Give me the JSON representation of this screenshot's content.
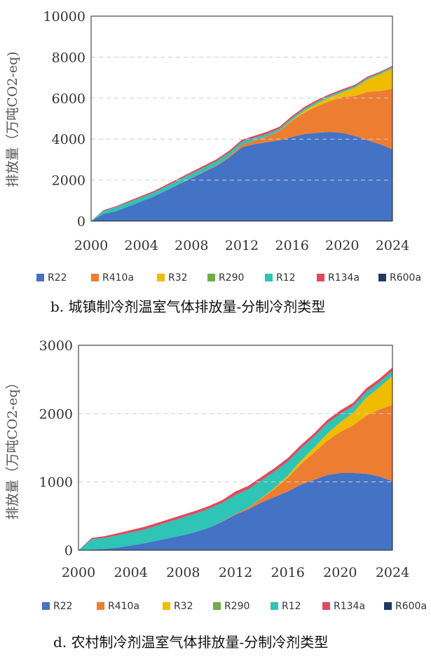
{
  "legend": [
    {
      "name": "R22",
      "color": "#4472C4"
    },
    {
      "name": "R410a",
      "color": "#ED7D31"
    },
    {
      "name": "R32",
      "color": "#F0BC00"
    },
    {
      "name": "R290",
      "color": "#70AD47"
    },
    {
      "name": "R12",
      "color": "#2EC4B6"
    },
    {
      "name": "R134a",
      "color": "#E04A5E"
    },
    {
      "name": "R600a",
      "color": "#203864"
    }
  ],
  "chart_data": [
    {
      "type": "area",
      "stacked": true,
      "caption": "b.  城镇制冷剂温室气体排放量-分制冷剂类型",
      "ylabel": "排放量（万吨CO2-eq)",
      "xlabel": "",
      "xlim": [
        2000,
        2024
      ],
      "ylim": [
        0,
        10000
      ],
      "y_ticks": [
        "0",
        "2000",
        "4000",
        "6000",
        "8000",
        "10000"
      ],
      "x_ticks": [
        "2000",
        "2004",
        "2008",
        "2012",
        "2016",
        "2020",
        "2024"
      ],
      "grid": "horizontal dashed",
      "legend_position": "bottom",
      "x": [
        2000,
        2001,
        2002,
        2003,
        2004,
        2005,
        2006,
        2007,
        2008,
        2009,
        2010,
        2011,
        2012,
        2013,
        2014,
        2015,
        2016,
        2017,
        2018,
        2019,
        2020,
        2021,
        2022,
        2023,
        2024
      ],
      "series": [
        {
          "name": "R22",
          "values": [
            0,
            350,
            480,
            720,
            960,
            1200,
            1500,
            1800,
            2100,
            2400,
            2700,
            3100,
            3600,
            3750,
            3850,
            3950,
            4100,
            4250,
            4300,
            4350,
            4300,
            4150,
            3950,
            3750,
            3500
          ]
        },
        {
          "name": "R410a",
          "values": [
            0,
            0,
            0,
            0,
            0,
            0,
            5,
            10,
            15,
            20,
            30,
            60,
            120,
            180,
            280,
            450,
            800,
            1050,
            1300,
            1500,
            1750,
            1950,
            2350,
            2600,
            2950
          ]
        },
        {
          "name": "R32",
          "values": [
            0,
            0,
            0,
            0,
            0,
            0,
            0,
            0,
            0,
            0,
            0,
            0,
            0,
            0,
            5,
            15,
            40,
            90,
            140,
            180,
            220,
            400,
            600,
            800,
            1000
          ]
        },
        {
          "name": "R290",
          "values": [
            0,
            0,
            0,
            0,
            0,
            0,
            0,
            0,
            0,
            0,
            0,
            0,
            0,
            0,
            0,
            0,
            0,
            0,
            0,
            5,
            10,
            10,
            15,
            15,
            20
          ]
        },
        {
          "name": "R12",
          "values": [
            0,
            150,
            200,
            200,
            200,
            200,
            200,
            200,
            200,
            200,
            200,
            180,
            150,
            130,
            120,
            100,
            100,
            100,
            90,
            80,
            75,
            70,
            65,
            60,
            55
          ]
        },
        {
          "name": "R134a",
          "values": [
            0,
            40,
            50,
            60,
            70,
            70,
            75,
            80,
            85,
            90,
            90,
            100,
            100,
            100,
            100,
            90,
            90,
            90,
            80,
            80,
            75,
            70,
            65,
            60,
            55
          ]
        },
        {
          "name": "R600a",
          "values": [
            0,
            0,
            0,
            0,
            0,
            0,
            0,
            0,
            0,
            0,
            0,
            0,
            0,
            0,
            0,
            0,
            0,
            0,
            0,
            0,
            0,
            0,
            0,
            0,
            0
          ]
        }
      ]
    },
    {
      "type": "area",
      "stacked": true,
      "caption": "d.  农村制冷剂温室气体排放量-分制冷剂类型",
      "ylabel": "排放量（万吨CO2-eq）",
      "xlabel": "",
      "xlim": [
        2000,
        2024
      ],
      "ylim": [
        0,
        3000
      ],
      "y_ticks": [
        "0",
        "1000",
        "2000",
        "3000"
      ],
      "x_ticks": [
        "2000",
        "2004",
        "2008",
        "2012",
        "2016",
        "2020",
        "2024"
      ],
      "grid": "horizontal dashed",
      "legend_position": "bottom",
      "x": [
        2000,
        2001,
        2002,
        2003,
        2004,
        2005,
        2006,
        2007,
        2008,
        2009,
        2010,
        2011,
        2012,
        2013,
        2014,
        2015,
        2016,
        2017,
        2018,
        2019,
        2020,
        2021,
        2022,
        2023,
        2024
      ],
      "series": [
        {
          "name": "R22",
          "values": [
            0,
            10,
            20,
            40,
            70,
            100,
            140,
            180,
            220,
            270,
            330,
            420,
            520,
            600,
            700,
            780,
            860,
            960,
            1030,
            1100,
            1130,
            1130,
            1120,
            1080,
            1010
          ]
        },
        {
          "name": "R410a",
          "values": [
            0,
            0,
            0,
            0,
            0,
            0,
            0,
            0,
            0,
            0,
            0,
            5,
            10,
            25,
            60,
            120,
            200,
            300,
            400,
            500,
            600,
            700,
            850,
            980,
            1120
          ]
        },
        {
          "name": "R32",
          "values": [
            0,
            0,
            0,
            0,
            0,
            0,
            0,
            0,
            0,
            0,
            0,
            0,
            0,
            0,
            5,
            15,
            30,
            50,
            70,
            100,
            140,
            180,
            260,
            320,
            420
          ]
        },
        {
          "name": "R290",
          "values": [
            0,
            0,
            0,
            0,
            0,
            0,
            0,
            0,
            0,
            0,
            0,
            0,
            0,
            0,
            0,
            0,
            0,
            0,
            0,
            5,
            5,
            10,
            10,
            10,
            15
          ]
        },
        {
          "name": "R12",
          "values": [
            0,
            150,
            160,
            180,
            190,
            200,
            220,
            240,
            260,
            270,
            280,
            270,
            280,
            270,
            260,
            240,
            210,
            180,
            160,
            150,
            120,
            90,
            80,
            70,
            60
          ]
        },
        {
          "name": "R134a",
          "values": [
            0,
            20,
            25,
            30,
            35,
            40,
            40,
            40,
            40,
            40,
            40,
            40,
            50,
            50,
            50,
            50,
            50,
            50,
            50,
            50,
            50,
            50,
            50,
            50,
            50
          ]
        },
        {
          "name": "R600a",
          "values": [
            0,
            0,
            0,
            0,
            0,
            0,
            0,
            0,
            0,
            0,
            0,
            0,
            0,
            0,
            0,
            0,
            0,
            0,
            0,
            0,
            0,
            0,
            0,
            0,
            0
          ]
        }
      ]
    }
  ]
}
